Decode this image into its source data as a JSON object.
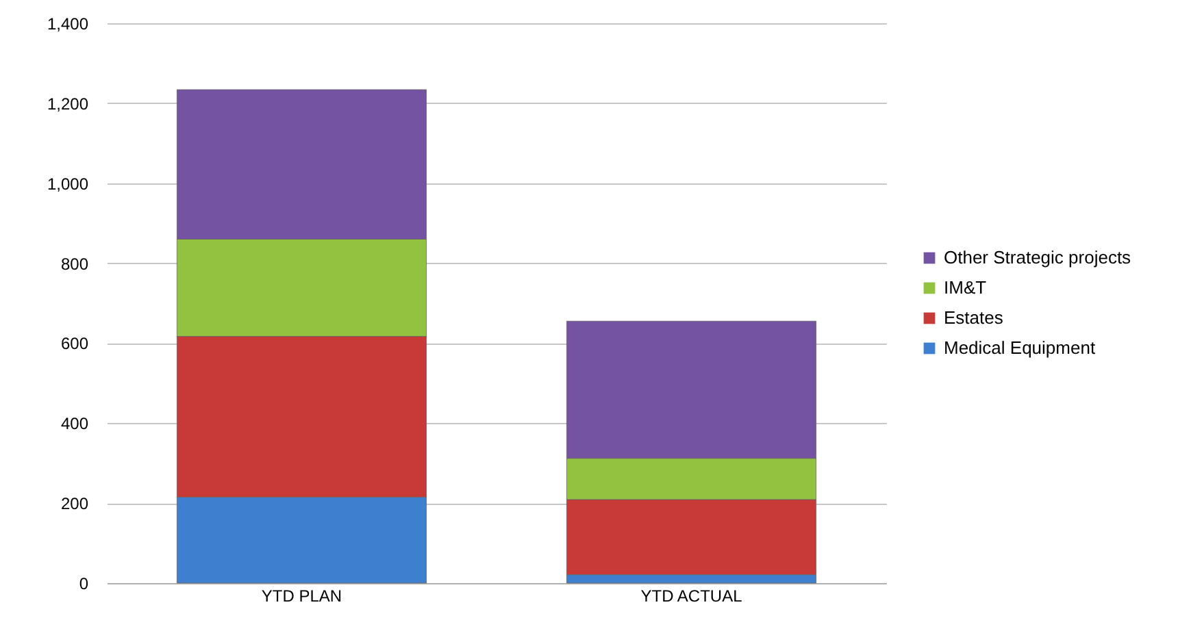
{
  "chart_data": {
    "type": "bar",
    "stacked": true,
    "categories": [
      "YTD PLAN",
      "YTD ACTUAL"
    ],
    "series": [
      {
        "name": "Medical Equipment",
        "color": "#3f7fcf",
        "values": [
          215,
          21
        ]
      },
      {
        "name": "Estates",
        "color": "#c83a37",
        "values": [
          402,
          188
        ]
      },
      {
        "name": "IM&T",
        "color": "#93c140",
        "values": [
          243,
          103
        ]
      },
      {
        "name": "Other Strategic projects",
        "color": "#7553a3",
        "values": [
          374,
          343
        ]
      }
    ],
    "ylim": [
      0,
      1400
    ],
    "yticks": [
      {
        "value": 0,
        "label": "0"
      },
      {
        "value": 200,
        "label": "200"
      },
      {
        "value": 400,
        "label": "400"
      },
      {
        "value": 600,
        "label": "600"
      },
      {
        "value": 800,
        "label": "800"
      },
      {
        "value": 1000,
        "label": "1,000"
      },
      {
        "value": 1200,
        "label": "1,200"
      },
      {
        "value": 1400,
        "label": "1,400"
      }
    ],
    "grid": "y",
    "legend": "right"
  }
}
